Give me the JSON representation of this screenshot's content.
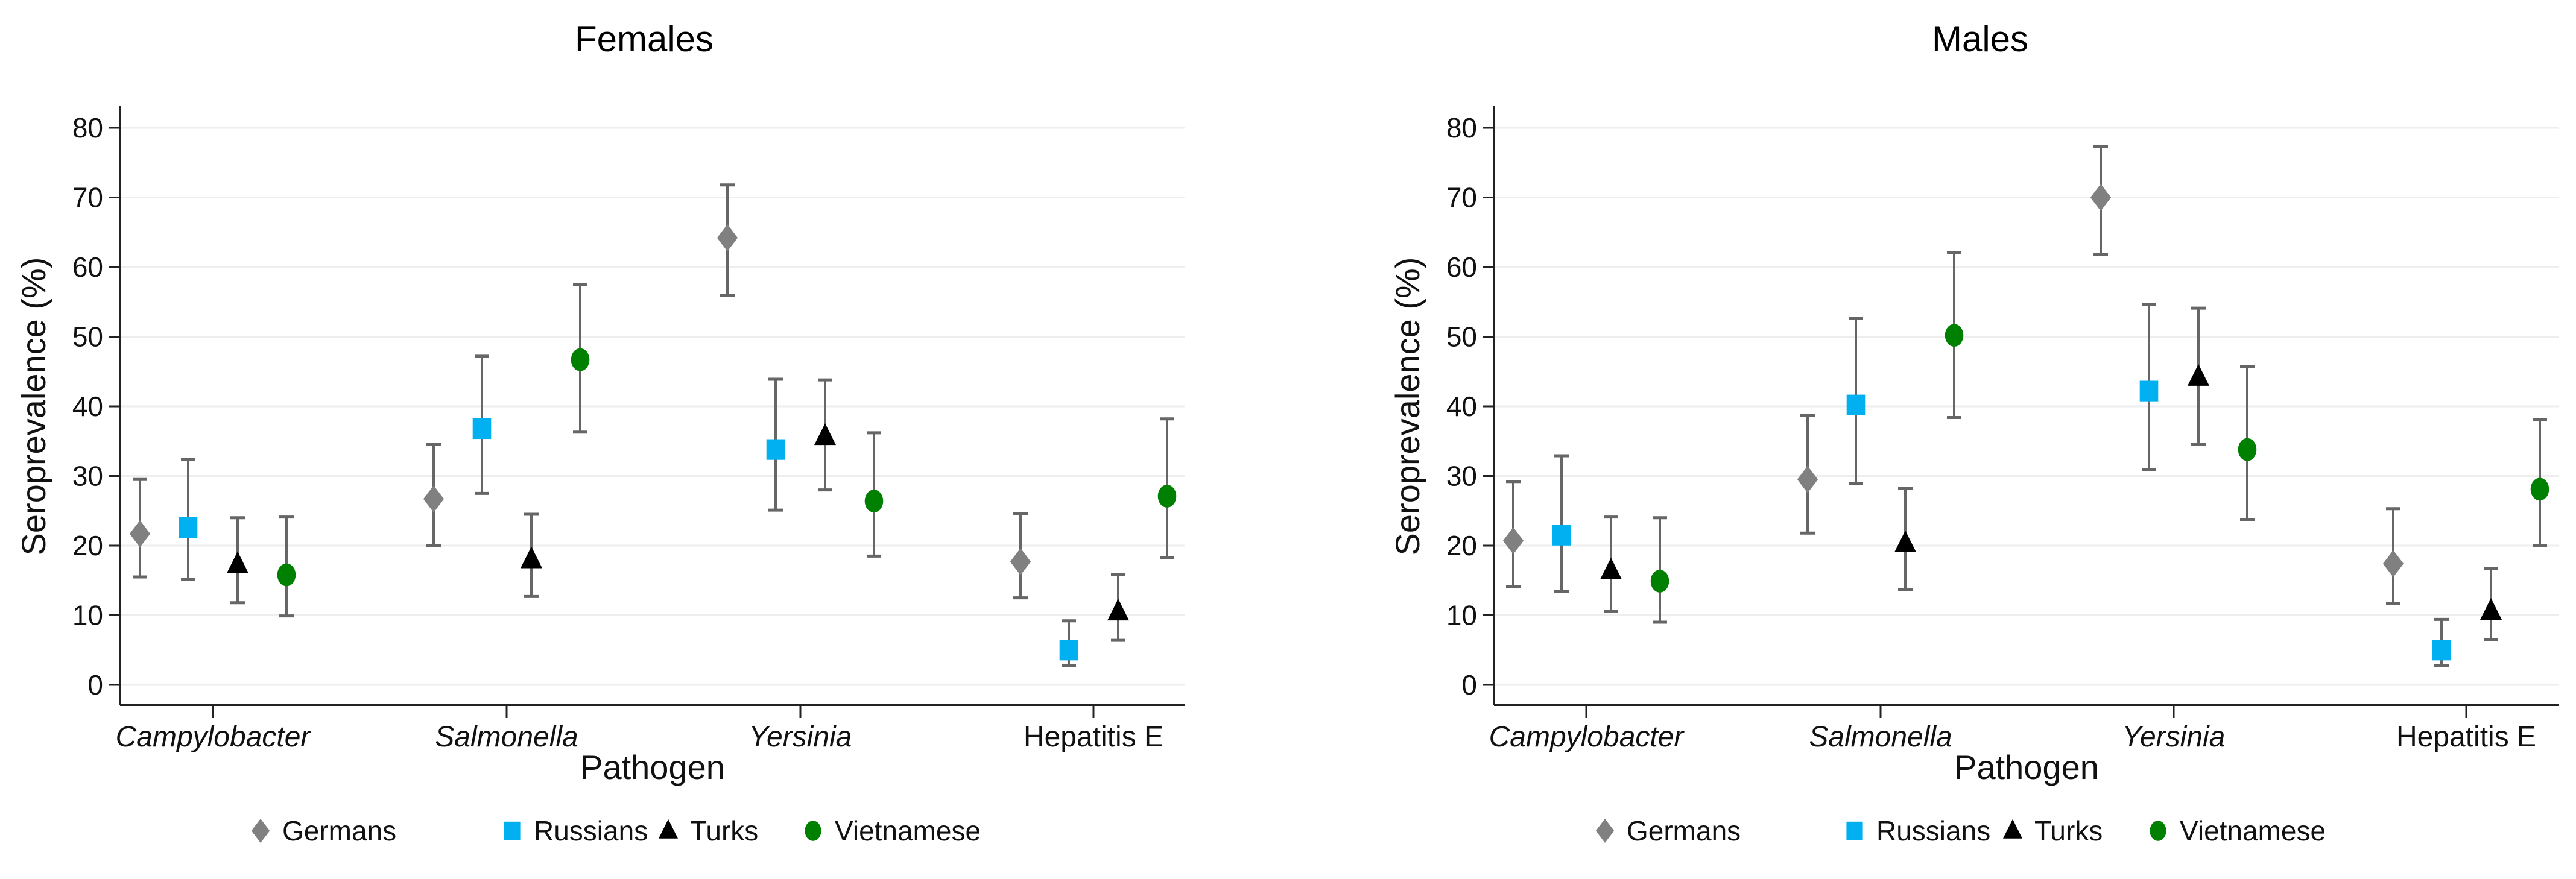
{
  "chart_data": [
    {
      "type": "scatter",
      "title": "Females",
      "xlabel": "Pathogen",
      "ylabel": "Seroprevalence (%)",
      "ylim": [
        0,
        80
      ],
      "yticks": [
        0,
        10,
        20,
        30,
        40,
        50,
        60,
        70,
        80
      ],
      "grid": true,
      "categories": [
        "Campylobacter",
        "Salmonella",
        "Yersinia",
        "Hepatitis E"
      ],
      "categories_italic": [
        true,
        true,
        true,
        false
      ],
      "legend_position": "bottom",
      "series": [
        {
          "name": "Germans",
          "marker": "diamond",
          "color": "#808080",
          "values": [
            21.7,
            26.7,
            64.2,
            17.7
          ],
          "lower": [
            15.5,
            20.0,
            55.9,
            12.5
          ],
          "upper": [
            29.5,
            34.5,
            71.8,
            24.6
          ]
        },
        {
          "name": "Russians",
          "marker": "square",
          "color": "#00b0f0",
          "values": [
            22.6,
            36.8,
            33.8,
            5.0
          ],
          "lower": [
            15.2,
            27.5,
            25.1,
            2.8
          ],
          "upper": [
            32.4,
            47.2,
            43.9,
            9.2
          ]
        },
        {
          "name": "Turks",
          "marker": "triangle",
          "color": "#000000",
          "values": [
            17.3,
            18.0,
            35.7,
            10.5
          ],
          "lower": [
            11.8,
            12.7,
            28.0,
            6.4
          ],
          "upper": [
            24.0,
            24.5,
            43.8,
            15.8
          ]
        },
        {
          "name": "Vietnamese",
          "marker": "circle",
          "color": "#008000",
          "values": [
            15.8,
            46.7,
            26.4,
            27.1
          ],
          "lower": [
            9.9,
            36.3,
            18.5,
            18.3
          ],
          "upper": [
            24.1,
            57.5,
            36.2,
            38.2
          ]
        }
      ]
    },
    {
      "type": "scatter",
      "title": "Males",
      "xlabel": "Pathogen",
      "ylabel": "Seroprevalence (%)",
      "ylim": [
        0,
        80
      ],
      "yticks": [
        0,
        10,
        20,
        30,
        40,
        50,
        60,
        70,
        80
      ],
      "grid": true,
      "categories": [
        "Campylobacter",
        "Salmonella",
        "Yersinia",
        "Hepatitis E"
      ],
      "categories_italic": [
        true,
        true,
        true,
        false
      ],
      "legend_position": "bottom",
      "series": [
        {
          "name": "Germans",
          "marker": "diamond",
          "color": "#808080",
          "values": [
            20.7,
            29.5,
            70.0,
            17.4
          ],
          "lower": [
            14.1,
            21.8,
            61.8,
            11.7
          ],
          "upper": [
            29.2,
            38.7,
            77.3,
            25.3
          ]
        },
        {
          "name": "Russians",
          "marker": "square",
          "color": "#00b0f0",
          "values": [
            21.5,
            40.2,
            42.2,
            5.0
          ],
          "lower": [
            13.4,
            28.9,
            30.9,
            2.8
          ],
          "upper": [
            32.9,
            52.6,
            54.6,
            9.4
          ]
        },
        {
          "name": "Turks",
          "marker": "triangle",
          "color": "#000000",
          "values": [
            16.4,
            20.3,
            44.2,
            10.6
          ],
          "lower": [
            10.6,
            13.7,
            34.5,
            6.5
          ],
          "upper": [
            24.1,
            28.2,
            54.1,
            16.7
          ]
        },
        {
          "name": "Vietnamese",
          "marker": "circle",
          "color": "#008000",
          "values": [
            14.9,
            50.2,
            33.8,
            28.1
          ],
          "lower": [
            9.0,
            38.4,
            23.7,
            20.0
          ],
          "upper": [
            24.0,
            62.1,
            45.7,
            38.1
          ]
        }
      ]
    }
  ]
}
